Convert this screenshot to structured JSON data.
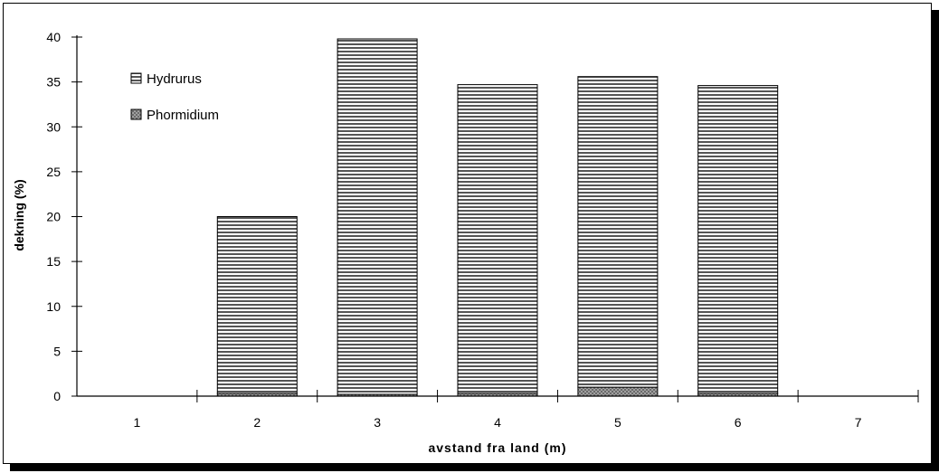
{
  "chart_data": {
    "type": "bar",
    "stacked": true,
    "categories": [
      "1",
      "2",
      "3",
      "4",
      "5",
      "6",
      "7"
    ],
    "series": [
      {
        "name": "Phormidium",
        "values": [
          0,
          0.3,
          0.2,
          0.3,
          1,
          0.3,
          0
        ]
      },
      {
        "name": "Hydrurus",
        "values": [
          0,
          19.7,
          39.6,
          34.4,
          34.6,
          34.3,
          0
        ]
      }
    ],
    "title": "",
    "xlabel": "avstand fra land (m)",
    "ylabel": "dekning (%)",
    "ylim": [
      0,
      40
    ],
    "yticks": [
      "0",
      "5",
      "10",
      "15",
      "20",
      "25",
      "30",
      "35",
      "40"
    ],
    "grid": false,
    "legend": {
      "placement": "top-left",
      "entries": [
        "Hydrurus",
        "Phormidium"
      ]
    },
    "colors": {
      "Hydrurus": "#555555",
      "Phormidium": "#8a8a8a",
      "axis": "#000000"
    }
  }
}
